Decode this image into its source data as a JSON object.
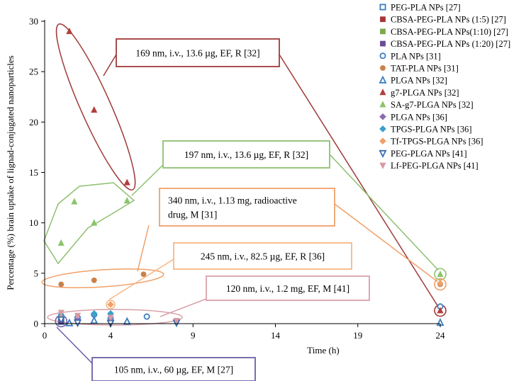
{
  "chart_data": {
    "type": "scatter",
    "xlabel": "Time (h)",
    "ylabel": "Percentage (%) brain uptake of lignad-conjugated nanoparticles",
    "xlim": [
      0,
      24
    ],
    "ylim": [
      0,
      30
    ],
    "x_ticks": [
      0,
      4,
      9,
      14,
      19,
      24
    ],
    "y_ticks": [
      0,
      5,
      10,
      15,
      20,
      25,
      30
    ],
    "legend_position": "top-right",
    "series": [
      {
        "name": "PEG-PLA NPs [27]",
        "marker": "square-open",
        "color": "#3a7ec0",
        "points": [
          [
            1,
            0.2
          ]
        ]
      },
      {
        "name": "CBSA-PEG-PLA NPs (1:5) [27]",
        "marker": "square",
        "color": "#a8343a",
        "points": [
          [
            1,
            0.3
          ]
        ]
      },
      {
        "name": "CBSA-PEG-PLA NPs(1:10) [27]",
        "marker": "square",
        "color": "#7aa84a",
        "points": [
          [
            1,
            0.3
          ]
        ]
      },
      {
        "name": "CBSA-PEG-PLA NPs (1:20) [27]",
        "marker": "square",
        "color": "#6b4a95",
        "points": [
          [
            1,
            0.2
          ]
        ]
      },
      {
        "name": "PLA NPs [31]",
        "marker": "circle-open",
        "color": "#3a7ec0",
        "points": [
          [
            1,
            0.7
          ],
          [
            2,
            0.6
          ],
          [
            3,
            0.9
          ],
          [
            4,
            0.5
          ],
          [
            6.2,
            0.7
          ],
          [
            24,
            1.7
          ]
        ]
      },
      {
        "name": "TAT-PLA NPs [31]",
        "marker": "circle",
        "color": "#c9814a",
        "points": [
          [
            1,
            3.9
          ],
          [
            3,
            4.3
          ],
          [
            6,
            4.9
          ],
          [
            24,
            3.9
          ]
        ]
      },
      {
        "name": "PLGA NPs [32]",
        "marker": "triangle-open",
        "color": "#3a7ec0",
        "points": [
          [
            1.5,
            0.05
          ],
          [
            3,
            0.3
          ],
          [
            5,
            0.2
          ],
          [
            24,
            0.1
          ]
        ]
      },
      {
        "name": "g7-PLGA NPs [32]",
        "marker": "triangle",
        "color": "#b33e3e",
        "points": [
          [
            1.5,
            29
          ],
          [
            3,
            21.2
          ],
          [
            5,
            14
          ],
          [
            24,
            1.3
          ]
        ]
      },
      {
        "name": "SA-g7-PLGA NPs [32]",
        "marker": "triangle",
        "color": "#8bc56b",
        "points": [
          [
            1,
            8
          ],
          [
            1.8,
            12.1
          ],
          [
            3,
            10
          ],
          [
            5,
            12.2
          ],
          [
            24,
            4.9
          ]
        ]
      },
      {
        "name": "PLGA NPs [36]",
        "marker": "diamond",
        "color": "#8a6bb0",
        "points": [
          [
            1,
            0.5
          ],
          [
            2,
            0.4
          ],
          [
            4,
            0.3
          ]
        ]
      },
      {
        "name": "TPGS-PLGA NPs [36]",
        "marker": "diamond",
        "color": "#3aa0c8",
        "points": [
          [
            1,
            0.9
          ],
          [
            3,
            1.0
          ],
          [
            4,
            1.0
          ]
        ]
      },
      {
        "name": "Tf-TPGS-PLGA NPs [36]",
        "marker": "diamond",
        "color": "#f0a068",
        "points": [
          [
            1,
            0.6
          ],
          [
            4,
            1.9
          ],
          [
            24,
            4.0
          ]
        ]
      },
      {
        "name": "PEG-PLGA NPs [41]",
        "marker": "triangle-down-open",
        "color": "#3a6bb0",
        "points": [
          [
            1,
            0.4
          ],
          [
            2,
            0.1
          ],
          [
            4,
            0.05
          ],
          [
            8,
            0.1
          ]
        ]
      },
      {
        "name": "Lf-PEG-PLGA NPs [41]",
        "marker": "triangle-down",
        "color": "#d89aa4",
        "points": [
          [
            1,
            1.1
          ],
          [
            2,
            0.8
          ],
          [
            4,
            0.6
          ],
          [
            8,
            0.3
          ]
        ]
      }
    ],
    "annotations": [
      {
        "lines": [
          "169 nm, i.v., 13.6 µg, EF, R [32]"
        ],
        "color": "#a03a3a"
      },
      {
        "lines": [
          "197 nm, i.v., 13.6 µg, EF, R [32]"
        ],
        "color": "#8fc070"
      },
      {
        "lines": [
          "340 nm, i.v., 1.13 mg, radioactive",
          "drug, M [31]"
        ],
        "color": "#f0a068"
      },
      {
        "lines": [
          "245 nm, i.v., 82.5 µg, EF, R [36]"
        ],
        "color": "#f5b888"
      },
      {
        "lines": [
          "120 nm, i.v., 1.2 mg, EF, M [41]"
        ],
        "color": "#d8a0aa"
      },
      {
        "lines": [
          "105 nm, i.v., 60 µg, EF, M [27]"
        ],
        "color": "#6a60a8"
      }
    ]
  }
}
